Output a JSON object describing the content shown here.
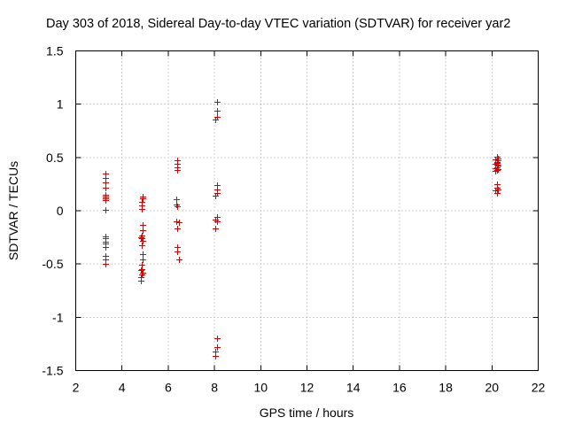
{
  "chart_data": {
    "type": "scatter",
    "title": "Day 303 of 2018, Sidereal Day-to-day VTEC variation (SDTVAR) for receiver yar2",
    "xlabel": "GPS time / hours",
    "ylabel": "SDTVAR / TECUs",
    "xlim": [
      2,
      22
    ],
    "ylim": [
      -1.5,
      1.5
    ],
    "xticks": [
      "2",
      "4",
      "6",
      "8",
      "10",
      "12",
      "14",
      "16",
      "18",
      "20",
      "22"
    ],
    "yticks": [
      "-1.5",
      "-1",
      "-0.5",
      "0",
      "0.5",
      "1",
      "1.5"
    ],
    "grid": true,
    "marker": "+",
    "color": "#e00000",
    "series": [
      {
        "name": "SDTVAR",
        "points": [
          [
            3.3,
            0.35
          ],
          [
            3.3,
            0.31
          ],
          [
            3.3,
            0.27
          ],
          [
            3.3,
            0.22
          ],
          [
            3.3,
            0.15
          ],
          [
            3.3,
            0.13
          ],
          [
            3.3,
            0.12
          ],
          [
            3.3,
            0.1
          ],
          [
            3.3,
            0.01
          ],
          [
            3.3,
            -0.24
          ],
          [
            3.3,
            -0.26
          ],
          [
            3.3,
            -0.29
          ],
          [
            3.3,
            -0.31
          ],
          [
            3.3,
            -0.34
          ],
          [
            3.3,
            -0.42
          ],
          [
            3.3,
            -0.46
          ],
          [
            3.3,
            -0.5
          ],
          [
            4.9,
            0.13
          ],
          [
            4.9,
            0.12
          ],
          [
            4.85,
            0.08
          ],
          [
            4.85,
            0.05
          ],
          [
            4.85,
            0.02
          ],
          [
            4.9,
            -0.13
          ],
          [
            4.9,
            -0.18
          ],
          [
            4.85,
            -0.23
          ],
          [
            4.8,
            -0.25
          ],
          [
            4.85,
            -0.26
          ],
          [
            4.9,
            -0.28
          ],
          [
            4.85,
            -0.32
          ],
          [
            4.9,
            -0.41
          ],
          [
            4.9,
            -0.46
          ],
          [
            4.85,
            -0.51
          ],
          [
            4.85,
            -0.55
          ],
          [
            4.8,
            -0.56
          ],
          [
            4.9,
            -0.58
          ],
          [
            4.85,
            -0.6
          ],
          [
            4.8,
            -0.62
          ],
          [
            4.8,
            -0.66
          ],
          [
            6.4,
            0.47
          ],
          [
            6.4,
            0.44
          ],
          [
            6.4,
            0.41
          ],
          [
            6.4,
            0.38
          ],
          [
            6.35,
            0.11
          ],
          [
            6.35,
            0.06
          ],
          [
            6.4,
            0.04
          ],
          [
            6.35,
            -0.1
          ],
          [
            6.45,
            -0.11
          ],
          [
            6.4,
            -0.17
          ],
          [
            6.4,
            -0.34
          ],
          [
            6.4,
            -0.38
          ],
          [
            6.45,
            -0.46
          ],
          [
            8.1,
            1.02
          ],
          [
            8.1,
            0.94
          ],
          [
            8.1,
            0.88
          ],
          [
            8.05,
            0.86
          ],
          [
            8.1,
            0.24
          ],
          [
            8.1,
            0.2
          ],
          [
            8.1,
            0.17
          ],
          [
            8.05,
            0.14
          ],
          [
            8.1,
            -0.06
          ],
          [
            8.05,
            -0.08
          ],
          [
            8.1,
            -0.1
          ],
          [
            8.05,
            -0.17
          ],
          [
            8.1,
            -1.2
          ],
          [
            8.1,
            -1.28
          ],
          [
            8.05,
            -1.32
          ],
          [
            8.05,
            -1.36
          ],
          [
            20.2,
            0.51
          ],
          [
            20.25,
            0.49
          ],
          [
            20.15,
            0.48
          ],
          [
            20.25,
            0.47
          ],
          [
            20.2,
            0.46
          ],
          [
            20.2,
            0.45
          ],
          [
            20.15,
            0.44
          ],
          [
            20.2,
            0.43
          ],
          [
            20.25,
            0.42
          ],
          [
            20.2,
            0.41
          ],
          [
            20.15,
            0.4
          ],
          [
            20.25,
            0.39
          ],
          [
            20.2,
            0.38
          ],
          [
            20.15,
            0.37
          ],
          [
            20.2,
            0.25
          ],
          [
            20.2,
            0.22
          ],
          [
            20.25,
            0.2
          ],
          [
            20.15,
            0.19
          ],
          [
            20.2,
            0.17
          ]
        ]
      }
    ]
  }
}
